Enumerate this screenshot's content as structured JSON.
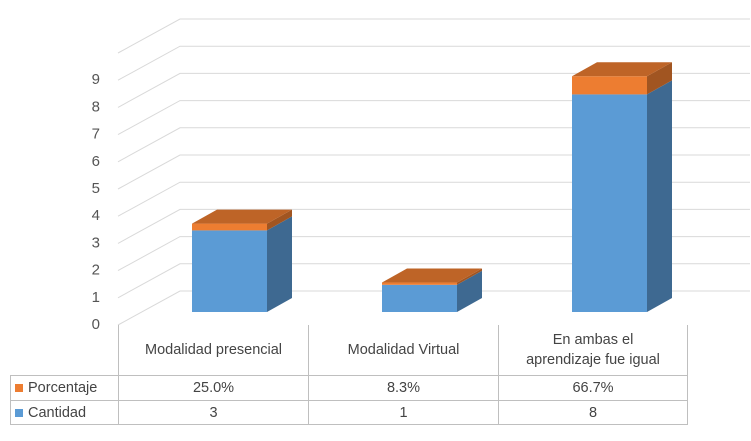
{
  "chart_data": {
    "type": "bar3d_stacked",
    "categories": [
      "Modalidad presencial",
      "Modalidad Virtual",
      "En ambas el aprendizaje fue igual"
    ],
    "series": [
      {
        "name": "Cantidad",
        "color": "#5b9bd5",
        "values": [
          3,
          1,
          8
        ]
      },
      {
        "name": "Porcentaje",
        "color": "#ed7d31",
        "values": [
          0.25,
          0.083,
          0.667
        ],
        "value_labels": [
          "25.0%",
          "8.3%",
          "66.7%"
        ]
      }
    ],
    "ylim": [
      0,
      10
    ],
    "yticks": [
      0,
      1,
      2,
      3,
      4,
      5,
      6,
      7,
      8,
      9
    ],
    "grid": true
  }
}
